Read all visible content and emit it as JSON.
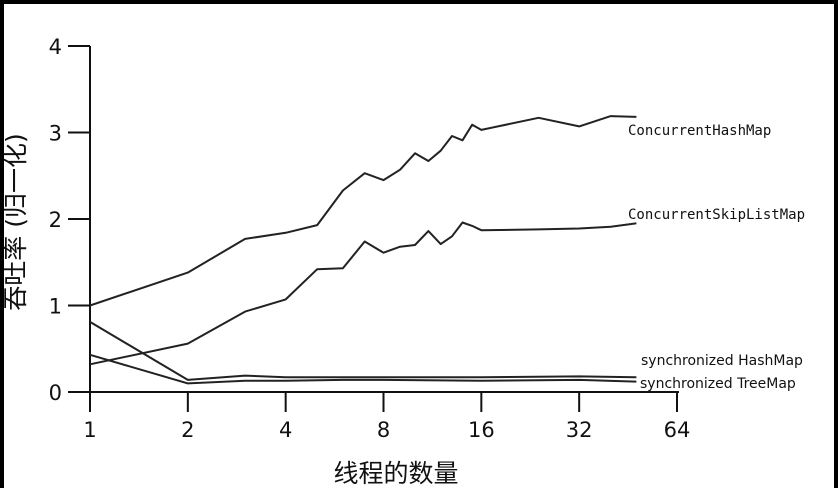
{
  "chart_data": {
    "type": "line",
    "title": "",
    "xlabel": "线程的数量",
    "ylabel": "吞吐率 (归一化)",
    "x_scale": "log2",
    "xlim": [
      1,
      64
    ],
    "ylim": [
      0,
      4
    ],
    "x_ticks": [
      1,
      2,
      4,
      8,
      16,
      32,
      64
    ],
    "x_tick_labels": [
      "1",
      "2",
      "4",
      "8",
      "16",
      "32",
      "64"
    ],
    "y_ticks": [
      0,
      1,
      2,
      3,
      4
    ],
    "y_tick_labels": [
      "0",
      "1",
      "2",
      "3",
      "4"
    ],
    "grid": false,
    "series": [
      {
        "name": "ConcurrentHashMap",
        "x": [
          1,
          2,
          3,
          4,
          5,
          6,
          7,
          8,
          9,
          10,
          11,
          12,
          13,
          14,
          15,
          16,
          24,
          32,
          40,
          48
        ],
        "y": [
          1.0,
          1.38,
          1.77,
          1.84,
          1.93,
          2.33,
          2.53,
          2.45,
          2.57,
          2.76,
          2.67,
          2.79,
          2.96,
          2.91,
          3.09,
          3.03,
          3.17,
          3.07,
          3.19,
          3.18
        ]
      },
      {
        "name": "ConcurrentSkipListMap",
        "x": [
          1,
          2,
          3,
          4,
          5,
          6,
          7,
          8,
          9,
          10,
          11,
          12,
          13,
          14,
          15,
          16,
          24,
          32,
          40,
          48
        ],
        "y": [
          0.32,
          0.56,
          0.93,
          1.07,
          1.42,
          1.43,
          1.74,
          1.61,
          1.68,
          1.7,
          1.86,
          1.71,
          1.8,
          1.96,
          1.92,
          1.87,
          1.88,
          1.89,
          1.91,
          1.95
        ]
      },
      {
        "name": "synchronized HashMap",
        "x": [
          1,
          2,
          3,
          4,
          6,
          8,
          16,
          32,
          48
        ],
        "y": [
          0.81,
          0.14,
          0.19,
          0.17,
          0.17,
          0.17,
          0.17,
          0.18,
          0.17
        ]
      },
      {
        "name": "synchronized TreeMap",
        "x": [
          1,
          2,
          3,
          4,
          6,
          8,
          16,
          32,
          48
        ],
        "y": [
          0.43,
          0.1,
          0.13,
          0.13,
          0.14,
          0.14,
          0.13,
          0.14,
          0.12
        ]
      }
    ]
  }
}
